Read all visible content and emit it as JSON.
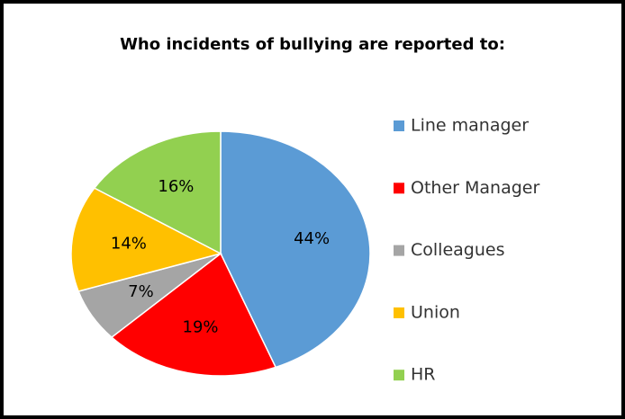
{
  "chart_data": {
    "type": "pie",
    "title": "Who incidents of bullying are reported to:",
    "series": [
      {
        "name": "Line manager",
        "color": "#5b9bd5"
      },
      {
        "name": "Other Manager",
        "color": "#ff0000"
      },
      {
        "name": "Colleagues",
        "color": "#a5a5a5"
      },
      {
        "name": "Union",
        "color": "#ffc000"
      },
      {
        "name": "HR",
        "color": "#92d050"
      }
    ],
    "values": [
      44,
      19,
      7,
      14,
      16
    ],
    "value_labels": [
      "44%",
      "19%",
      "7%",
      "14%",
      "16%"
    ],
    "legend": "right"
  }
}
